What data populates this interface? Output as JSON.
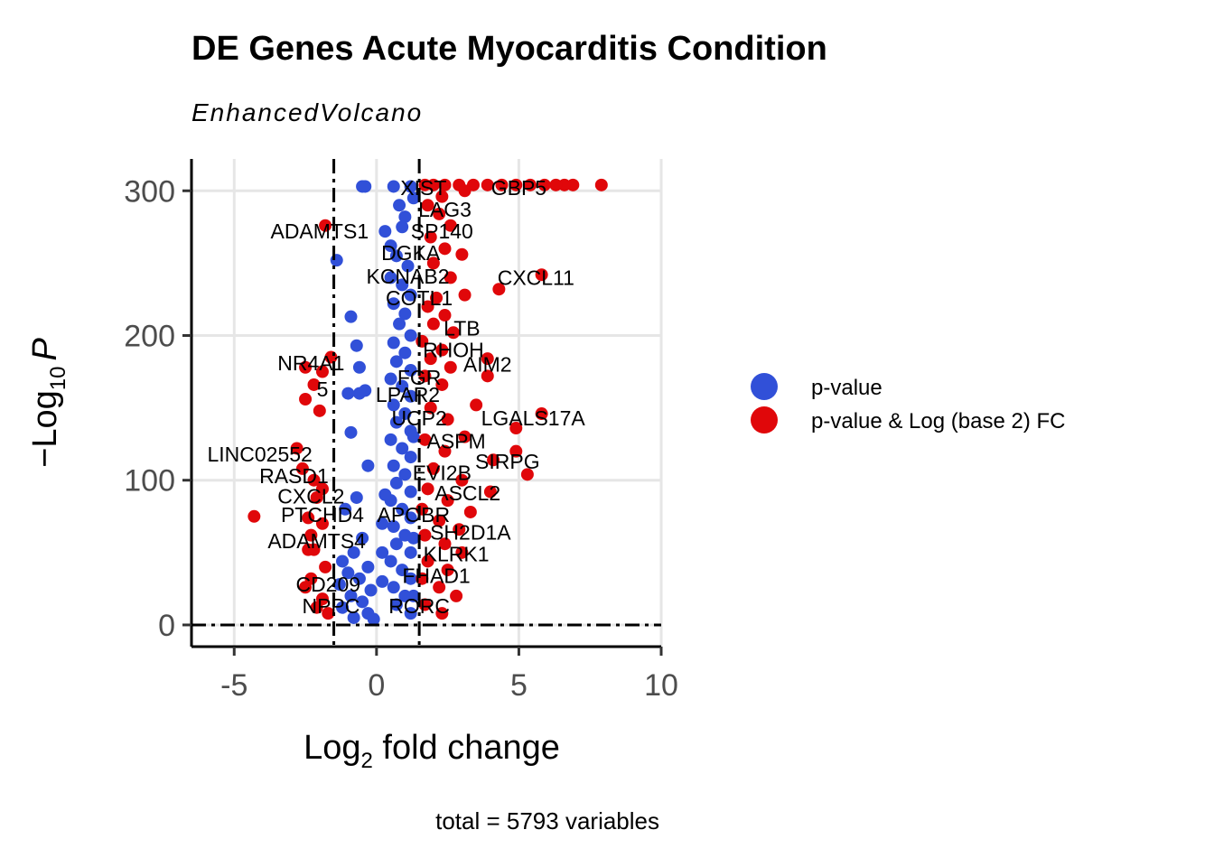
{
  "chart_data": {
    "type": "scatter",
    "title": "DE Genes Acute Myocarditis Condition",
    "subtitle": "EnhancedVolcano",
    "xlabel_main": "Log",
    "xlabel_sub": "2",
    "xlabel_rest": " fold change",
    "ylabel_minus": "−",
    "ylabel_main": "Log",
    "ylabel_sub": "10",
    "ylabel_p": "P",
    "caption": "total = 5793 variables",
    "xlim": [
      -6.5,
      10
    ],
    "ylim": [
      -15,
      322
    ],
    "x_ticks": [
      -5,
      0,
      5,
      10
    ],
    "x_tick_labels": [
      "-5",
      "0",
      "5",
      "10"
    ],
    "y_ticks": [
      0,
      100,
      200,
      300
    ],
    "y_tick_labels": [
      "0",
      "100",
      "200",
      "300"
    ],
    "grid": true,
    "fc_cutoff": 1.5,
    "p_cutoff_y": 0,
    "colors": {
      "pvalue": "#3150D8",
      "pvalue_fc": "#E0070A"
    },
    "legend": {
      "position": "right",
      "entries": [
        {
          "label": "p-value",
          "color": "#3150D8"
        },
        {
          "label": "p-value & Log (base 2) FC",
          "color": "#E0070A"
        }
      ]
    },
    "series": [
      {
        "name": "p-value",
        "points": [
          [
            -0.5,
            303
          ],
          [
            -0.4,
            303
          ],
          [
            0.6,
            303
          ],
          [
            1.2,
            303
          ],
          [
            0.8,
            290
          ],
          [
            1.3,
            295
          ],
          [
            0.3,
            272
          ],
          [
            0.9,
            275
          ],
          [
            1.0,
            282
          ],
          [
            -1.4,
            252
          ],
          [
            -0.9,
            213
          ],
          [
            -0.7,
            193
          ],
          [
            -0.6,
            178
          ],
          [
            -0.4,
            162
          ],
          [
            -0.6,
            160
          ],
          [
            -1.0,
            160
          ],
          [
            -0.9,
            133
          ],
          [
            -0.3,
            110
          ],
          [
            0.5,
            262
          ],
          [
            0.7,
            255
          ],
          [
            1.1,
            248
          ],
          [
            0.5,
            240
          ],
          [
            0.9,
            235
          ],
          [
            1.2,
            228
          ],
          [
            0.6,
            222
          ],
          [
            1.0,
            215
          ],
          [
            0.8,
            208
          ],
          [
            1.2,
            200
          ],
          [
            0.6,
            195
          ],
          [
            1.0,
            188
          ],
          [
            0.7,
            182
          ],
          [
            1.2,
            176
          ],
          [
            0.5,
            170
          ],
          [
            0.9,
            165
          ],
          [
            1.2,
            158
          ],
          [
            0.6,
            152
          ],
          [
            1.0,
            146
          ],
          [
            0.7,
            140
          ],
          [
            1.2,
            134
          ],
          [
            0.5,
            128
          ],
          [
            0.9,
            122
          ],
          [
            1.2,
            116
          ],
          [
            0.6,
            110
          ],
          [
            1.0,
            104
          ],
          [
            0.7,
            98
          ],
          [
            1.2,
            92
          ],
          [
            0.5,
            86
          ],
          [
            0.9,
            80
          ],
          [
            1.2,
            74
          ],
          [
            0.6,
            68
          ],
          [
            1.0,
            62
          ],
          [
            0.7,
            56
          ],
          [
            1.2,
            50
          ],
          [
            0.5,
            44
          ],
          [
            0.9,
            38
          ],
          [
            1.2,
            32
          ],
          [
            0.6,
            26
          ],
          [
            1.0,
            20
          ],
          [
            0.7,
            14
          ],
          [
            1.2,
            8
          ],
          [
            -0.5,
            60
          ],
          [
            -0.8,
            50
          ],
          [
            -1.2,
            44
          ],
          [
            -0.3,
            40
          ],
          [
            -1.0,
            36
          ],
          [
            -0.6,
            32
          ],
          [
            -1.3,
            28
          ],
          [
            -0.2,
            24
          ],
          [
            -0.9,
            20
          ],
          [
            -0.5,
            16
          ],
          [
            -1.2,
            12
          ],
          [
            -0.3,
            8
          ],
          [
            -0.8,
            5
          ],
          [
            -0.1,
            4
          ],
          [
            0.2,
            30
          ],
          [
            0.2,
            50
          ],
          [
            0.2,
            70
          ],
          [
            0.3,
            90
          ],
          [
            1.3,
            130
          ],
          [
            1.3,
            60
          ],
          [
            1.3,
            20
          ],
          [
            -1.1,
            80
          ],
          [
            -0.7,
            88
          ]
        ]
      },
      {
        "name": "p-value & Log (base 2) FC",
        "points": [
          [
            7.9,
            304
          ],
          [
            6.9,
            304
          ],
          [
            6.6,
            304
          ],
          [
            6.3,
            304
          ],
          [
            5.9,
            304
          ],
          [
            5.4,
            304
          ],
          [
            4.9,
            304
          ],
          [
            4.4,
            304
          ],
          [
            3.9,
            304
          ],
          [
            3.4,
            304
          ],
          [
            2.9,
            304
          ],
          [
            2.4,
            304
          ],
          [
            2.0,
            304
          ],
          [
            1.7,
            304
          ],
          [
            3.1,
            300
          ],
          [
            2.3,
            296
          ],
          [
            1.8,
            290
          ],
          [
            2.2,
            284
          ],
          [
            2.6,
            276
          ],
          [
            1.9,
            268
          ],
          [
            2.4,
            260
          ],
          [
            3.0,
            256
          ],
          [
            2.0,
            250
          ],
          [
            2.6,
            240
          ],
          [
            5.8,
            242
          ],
          [
            4.3,
            232
          ],
          [
            2.1,
            226
          ],
          [
            3.1,
            228
          ],
          [
            1.8,
            220
          ],
          [
            2.4,
            214
          ],
          [
            2.0,
            208
          ],
          [
            2.7,
            202
          ],
          [
            1.6,
            196
          ],
          [
            2.3,
            190
          ],
          [
            3.9,
            184
          ],
          [
            1.9,
            184
          ],
          [
            2.6,
            178
          ],
          [
            3.9,
            172
          ],
          [
            1.7,
            172
          ],
          [
            2.3,
            166
          ],
          [
            3.5,
            152
          ],
          [
            5.8,
            146
          ],
          [
            4.9,
            136
          ],
          [
            1.9,
            150
          ],
          [
            2.5,
            142
          ],
          [
            3.1,
            130
          ],
          [
            1.7,
            128
          ],
          [
            2.4,
            120
          ],
          [
            4.9,
            120
          ],
          [
            5.3,
            104
          ],
          [
            4.1,
            114
          ],
          [
            2.0,
            108
          ],
          [
            3.0,
            100
          ],
          [
            4.0,
            92
          ],
          [
            1.8,
            94
          ],
          [
            2.5,
            86
          ],
          [
            3.3,
            78
          ],
          [
            1.6,
            80
          ],
          [
            2.2,
            72
          ],
          [
            2.9,
            66
          ],
          [
            1.7,
            62
          ],
          [
            2.4,
            56
          ],
          [
            3.0,
            50
          ],
          [
            1.8,
            44
          ],
          [
            2.5,
            38
          ],
          [
            1.6,
            32
          ],
          [
            2.2,
            26
          ],
          [
            2.8,
            20
          ],
          [
            1.7,
            14
          ],
          [
            2.3,
            8
          ],
          [
            -1.8,
            276
          ],
          [
            -1.6,
            185
          ],
          [
            -1.9,
            175
          ],
          [
            -2.5,
            178
          ],
          [
            -2.2,
            166
          ],
          [
            -2.5,
            156
          ],
          [
            -2.0,
            148
          ],
          [
            -2.8,
            122
          ],
          [
            -2.6,
            108
          ],
          [
            -2.2,
            100
          ],
          [
            -1.9,
            94
          ],
          [
            -2.1,
            88
          ],
          [
            -4.3,
            75
          ],
          [
            -2.4,
            74
          ],
          [
            -1.9,
            70
          ],
          [
            -2.3,
            62
          ],
          [
            -2.4,
            52
          ],
          [
            -2.2,
            52
          ],
          [
            -1.8,
            40
          ],
          [
            -2.3,
            32
          ],
          [
            -2.5,
            26
          ],
          [
            -1.9,
            18
          ],
          [
            -2.1,
            12
          ],
          [
            -1.7,
            8
          ]
        ]
      }
    ],
    "labels": [
      {
        "text": "XIST",
        "x": 1.65,
        "y": 302
      },
      {
        "text": "GBP5",
        "x": 5.0,
        "y": 302
      },
      {
        "text": "LAG3",
        "x": 2.4,
        "y": 287
      },
      {
        "text": "ADAMTS1",
        "x": -2.0,
        "y": 272
      },
      {
        "text": "SP140",
        "x": 2.3,
        "y": 272
      },
      {
        "text": "DGKA",
        "x": 1.2,
        "y": 257
      },
      {
        "text": "KCNAB2",
        "x": 1.1,
        "y": 241
      },
      {
        "text": "CXCL11",
        "x": 5.6,
        "y": 240
      },
      {
        "text": "COTL1",
        "x": 1.5,
        "y": 226
      },
      {
        "text": "LTB",
        "x": 3.0,
        "y": 205
      },
      {
        "text": "RHOH",
        "x": 2.7,
        "y": 190
      },
      {
        "text": "NR4A1",
        "x": -2.3,
        "y": 181
      },
      {
        "text": "AIM2",
        "x": 3.9,
        "y": 180
      },
      {
        "text": "FGR",
        "x": 1.5,
        "y": 171
      },
      {
        "text": "5",
        "x": -1.9,
        "y": 163
      },
      {
        "text": "LPAR2",
        "x": 1.1,
        "y": 159
      },
      {
        "text": "UCP2",
        "x": 1.5,
        "y": 143
      },
      {
        "text": "LGALS17A",
        "x": 5.5,
        "y": 143
      },
      {
        "text": "ASPM",
        "x": 2.8,
        "y": 127
      },
      {
        "text": "LINC02552",
        "x": -4.1,
        "y": 118
      },
      {
        "text": "SIRPG",
        "x": 4.6,
        "y": 113
      },
      {
        "text": "RASD1",
        "x": -2.9,
        "y": 103
      },
      {
        "text": "EVI2B",
        "x": 2.3,
        "y": 105
      },
      {
        "text": "CXCL2",
        "x": -2.3,
        "y": 89
      },
      {
        "text": "ASCL2",
        "x": 3.2,
        "y": 91
      },
      {
        "text": "PTCHD4",
        "x": -1.9,
        "y": 76
      },
      {
        "text": "APOBR",
        "x": 1.3,
        "y": 76
      },
      {
        "text": "SH2D1A",
        "x": 3.3,
        "y": 64
      },
      {
        "text": "ADAMTS4",
        "x": -2.1,
        "y": 58
      },
      {
        "text": "KLRK1",
        "x": 2.8,
        "y": 49
      },
      {
        "text": "FHAD1",
        "x": 2.1,
        "y": 34
      },
      {
        "text": "CD209",
        "x": -1.7,
        "y": 28
      },
      {
        "text": "NPPC",
        "x": -1.6,
        "y": 13
      },
      {
        "text": "RORC",
        "x": 1.5,
        "y": 13
      }
    ]
  }
}
